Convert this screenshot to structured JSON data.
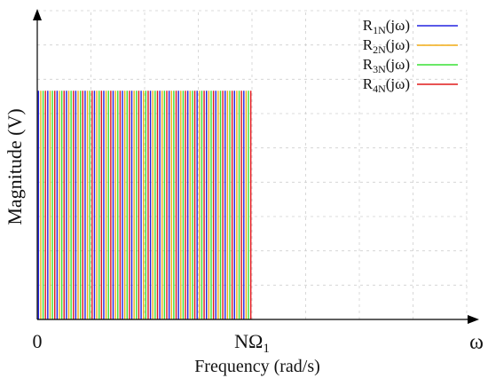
{
  "chart_data": {
    "type": "bar",
    "title": "",
    "xlabel": "Frequency (rad/s)",
    "ylabel": "Magnitude (V)",
    "x_tick_labels": [
      {
        "main": "0",
        "sub": ""
      },
      {
        "main": "NΩ",
        "sub": "1"
      }
    ],
    "x_axis_end_label": "ω",
    "grid": true,
    "legend_position": "top-right",
    "series": [
      {
        "base": "R",
        "sub": "1N",
        "suffix": "(jω)",
        "color": "#2323e0"
      },
      {
        "base": "R",
        "sub": "2N",
        "suffix": "(jω)",
        "color": "#f2ac14"
      },
      {
        "base": "R",
        "sub": "3N",
        "suffix": "(jω)",
        "color": "#39e035"
      },
      {
        "base": "R",
        "sub": "4N",
        "suffix": "(jω)",
        "color": "#e01a1a"
      }
    ],
    "x_range": [
      0,
      2
    ],
    "y_range": [
      0,
      1.35
    ],
    "spectrum": {
      "band_start": 0,
      "band_end": 1,
      "magnitude": 1,
      "line_count": 92
    }
  }
}
